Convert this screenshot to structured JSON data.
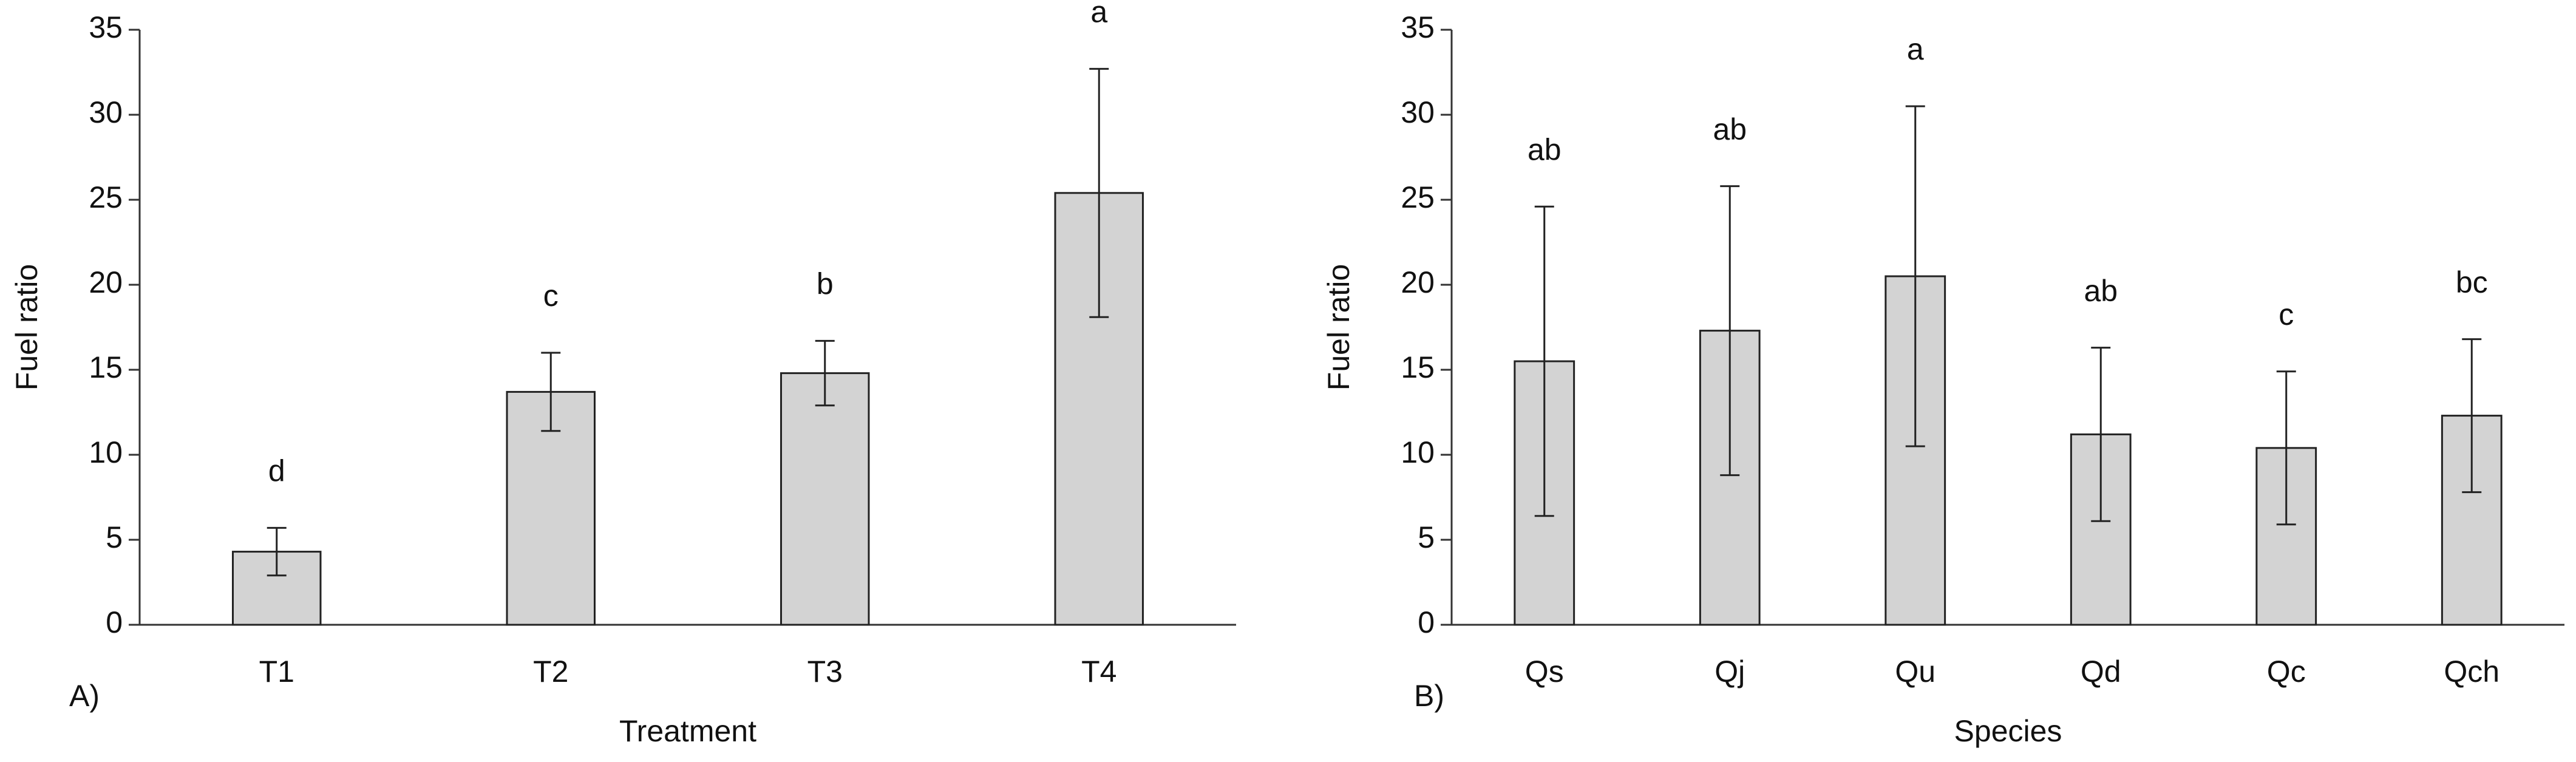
{
  "chart_data": [
    {
      "type": "bar",
      "panel_label": "A)",
      "x_label": "Treatment",
      "y_label": "Fuel ratio",
      "categories": [
        "T1",
        "T2",
        "T3",
        "T4"
      ],
      "values": [
        4.3,
        13.7,
        14.8,
        25.4
      ],
      "errors": [
        1.4,
        2.3,
        1.9,
        7.3
      ],
      "annotations": [
        "d",
        "c",
        "b",
        "a"
      ],
      "color": "#d3d3d3",
      "ylim": [
        0,
        35
      ],
      "yticks": [
        0,
        5,
        10,
        15,
        20,
        25,
        30,
        35
      ]
    },
    {
      "type": "bar",
      "panel_label": "B)",
      "x_label": "Species",
      "y_label": "Fuel ratio",
      "categories": [
        "Qs",
        "Qj",
        "Qu",
        "Qd",
        "Qc",
        "Qch"
      ],
      "values": [
        15.5,
        17.3,
        20.5,
        11.2,
        10.4,
        12.3
      ],
      "errors": [
        9.1,
        8.5,
        10.0,
        5.1,
        4.5,
        4.5
      ],
      "annotations": [
        "ab",
        "ab",
        "a",
        "ab",
        "c",
        "bc"
      ],
      "color": "#d3d3d3",
      "ylim": [
        0,
        35
      ],
      "yticks": [
        0,
        5,
        10,
        15,
        20,
        25,
        30,
        35
      ]
    }
  ]
}
